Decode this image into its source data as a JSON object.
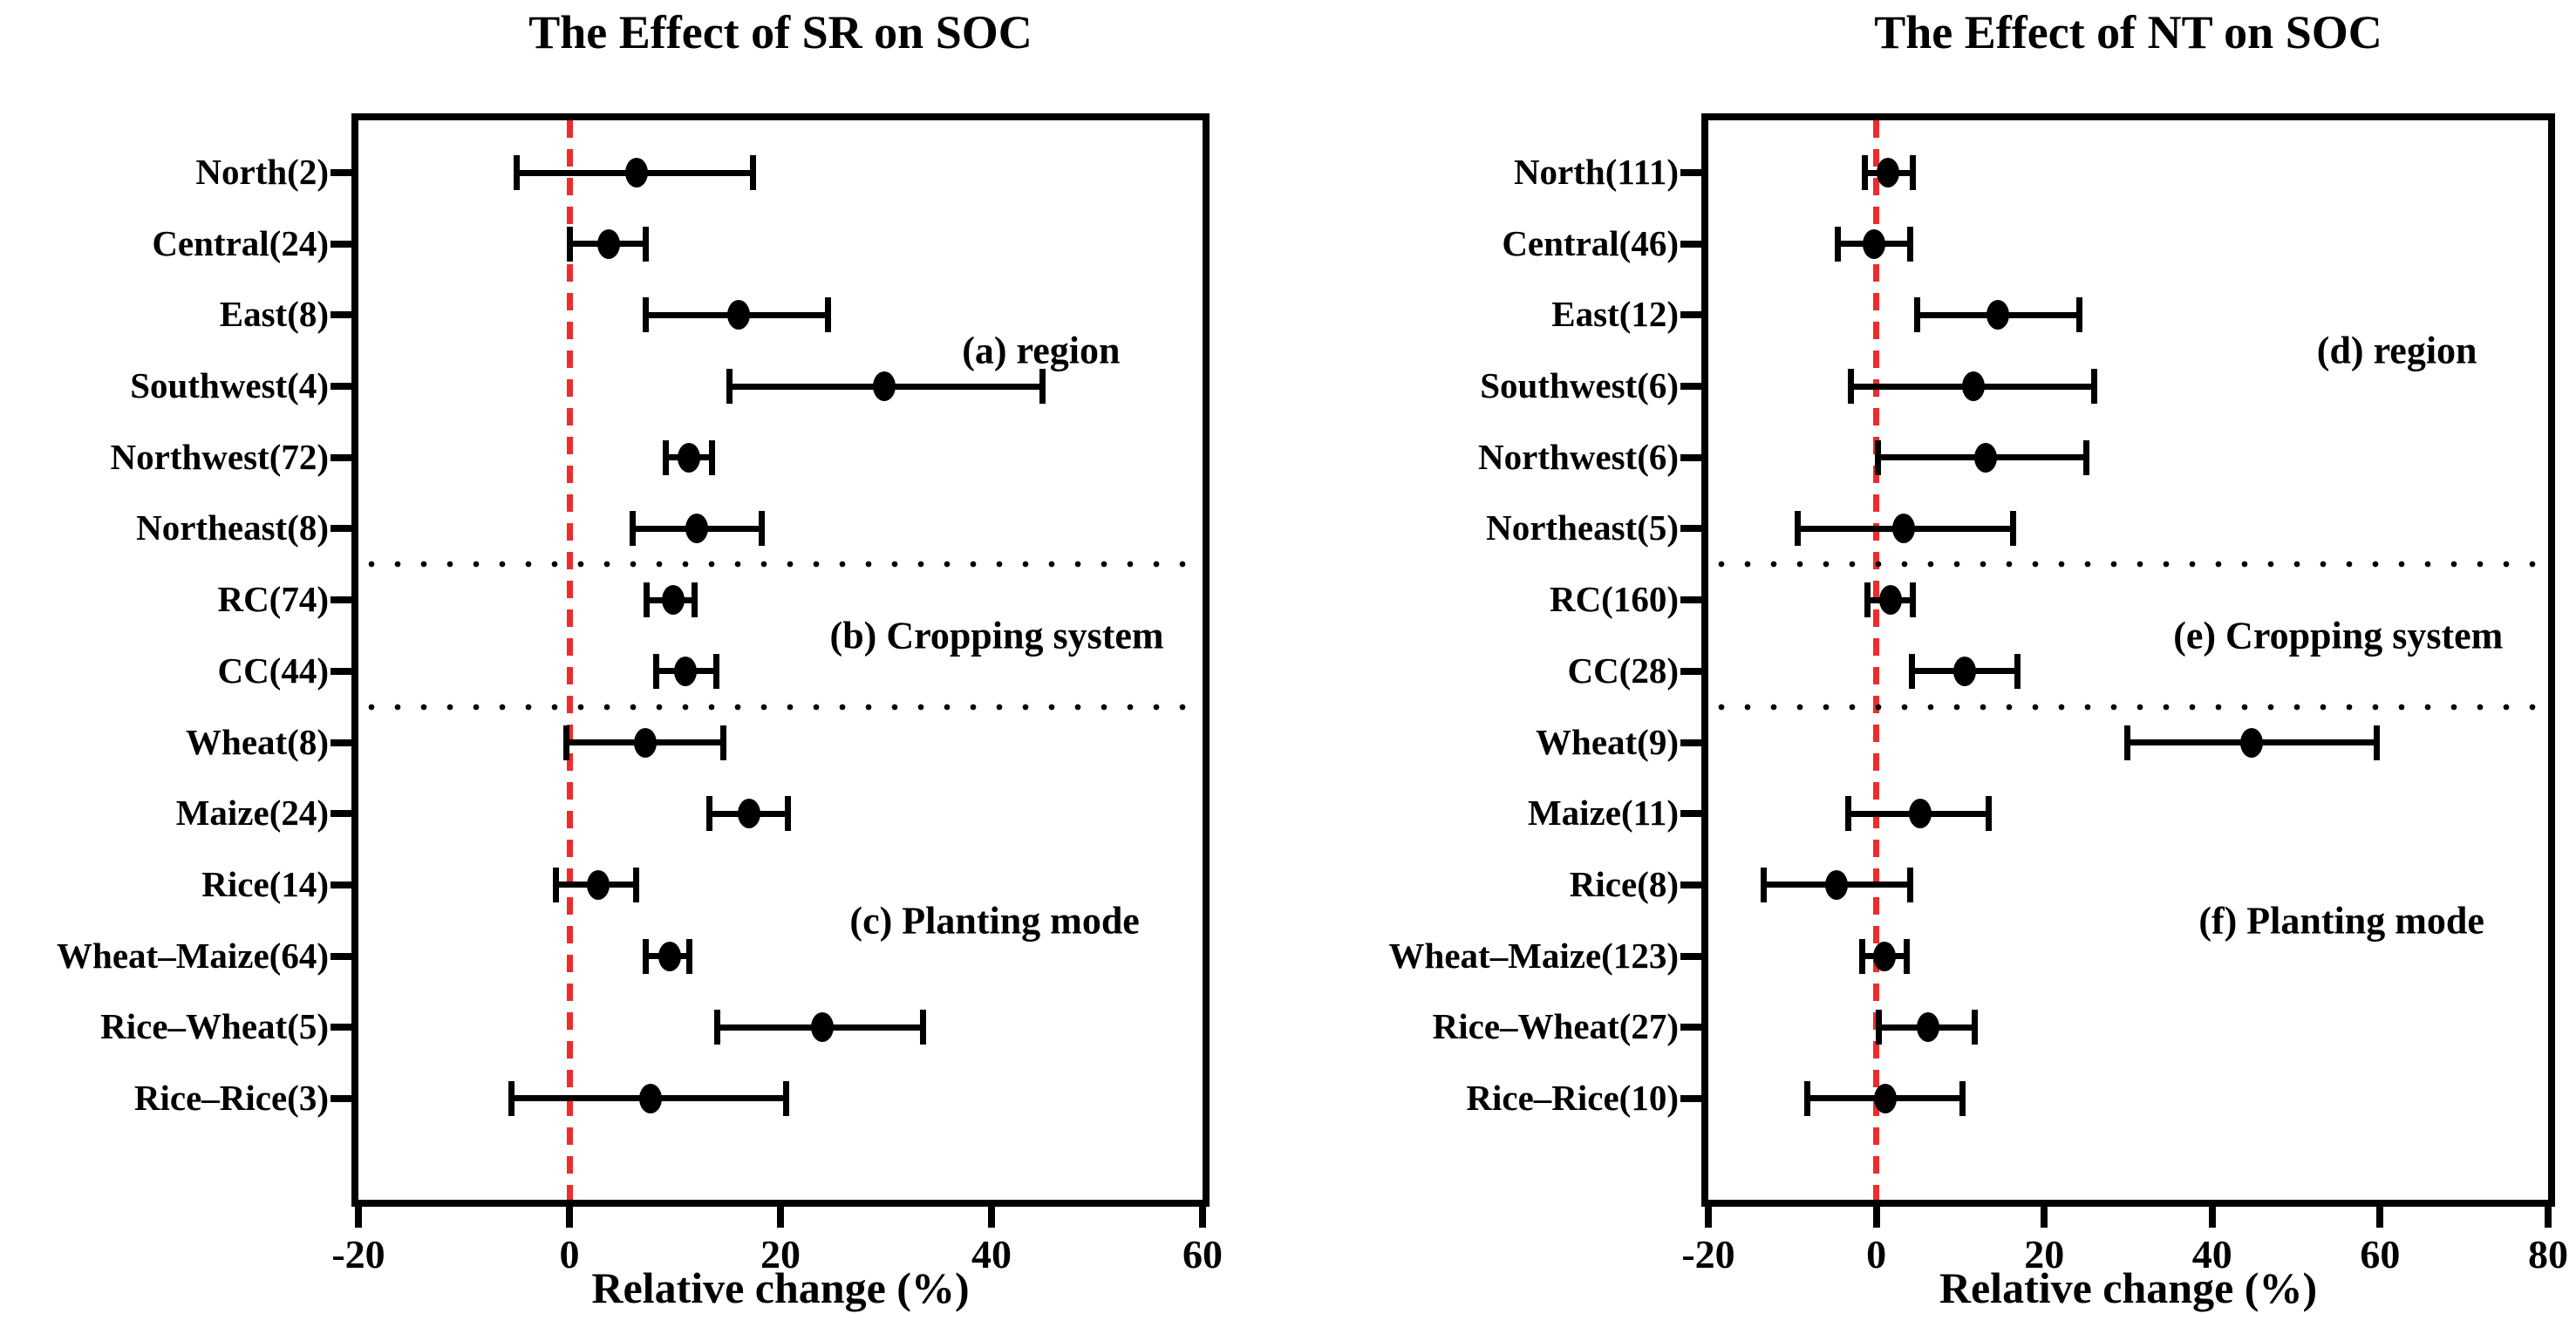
{
  "figure": {
    "background": "#ffffff",
    "text_color": "#000000",
    "zero_line_color": "#ee2c2c",
    "marker_color": "#000000"
  },
  "chart_data": [
    {
      "type": "errorbar",
      "title": "The Effect of SR on SOC",
      "xlabel": "Relative change (%)",
      "xlim": [
        -20,
        60
      ],
      "xticks": [
        -20,
        0,
        20,
        40,
        60
      ],
      "zero_line": 0,
      "grid": false,
      "legend_position": "none",
      "zero_line_color": "#ee2c2c",
      "categories": [
        "North(2)",
        "Central(24)",
        "East(8)",
        "Southwest(4)",
        "Northwest(72)",
        "Northeast(8)",
        "RC(74)",
        "CC(44)",
        "Wheat(8)",
        "Maize(24)",
        "Rice(14)",
        "Wheat–Maize(64)",
        "Rice–Wheat(5)",
        "Rice–Rice(3)"
      ],
      "series": [
        {
          "name": "mean",
          "values": [
            6.4,
            3.7,
            16.0,
            29.8,
            11.3,
            12.1,
            9.8,
            11.0,
            7.2,
            17.0,
            2.7,
            9.5,
            24.0,
            7.7
          ]
        },
        {
          "name": "ci_lower",
          "values": [
            -5.0,
            0.0,
            7.2,
            15.2,
            9.1,
            6.0,
            7.3,
            8.2,
            -0.3,
            13.3,
            -1.3,
            7.2,
            14.0,
            -5.5
          ]
        },
        {
          "name": "ci_upper",
          "values": [
            17.4,
            7.2,
            24.5,
            44.8,
            13.5,
            18.2,
            11.9,
            13.9,
            14.6,
            20.7,
            6.3,
            11.4,
            33.5,
            20.5
          ]
        }
      ],
      "separators_after_rows": [
        5,
        7
      ],
      "annotations": [
        {
          "label": "(a) region",
          "x": 44.7,
          "row_anchor": 2.5
        },
        {
          "label": "(b) Cropping system",
          "x": 40.5,
          "row_anchor": 6.5
        },
        {
          "label": "(c) Planting mode",
          "x": 40.3,
          "row_anchor": 10.5
        }
      ]
    },
    {
      "type": "errorbar",
      "title": "The Effect of NT on SOC",
      "xlabel": "Relative change (%)",
      "xlim": [
        -20,
        80
      ],
      "xticks": [
        -20,
        0,
        20,
        40,
        60,
        80
      ],
      "zero_line": 0,
      "grid": false,
      "legend_position": "none",
      "zero_line_color": "#ee2c2c",
      "categories": [
        "North(111)",
        "Central(46)",
        "East(12)",
        "Southwest(6)",
        "Northwest(6)",
        "Northeast(5)",
        "RC(160)",
        "CC(28)",
        "Wheat(9)",
        "Maize(11)",
        "Rice(8)",
        "Wheat–Maize(123)",
        "Rice–Wheat(27)",
        "Rice–Rice(10)"
      ],
      "series": [
        {
          "name": "mean",
          "values": [
            1.4,
            -0.3,
            14.5,
            11.6,
            13.0,
            3.3,
            1.7,
            10.5,
            44.7,
            5.2,
            -4.7,
            1.0,
            6.2,
            1.1
          ]
        },
        {
          "name": "ci_lower",
          "values": [
            -1.4,
            -4.6,
            4.9,
            -3.0,
            0.2,
            -9.4,
            -1.0,
            4.2,
            29.9,
            -3.3,
            -13.4,
            -1.7,
            0.3,
            -8.2
          ]
        },
        {
          "name": "ci_upper",
          "values": [
            4.3,
            4.0,
            24.2,
            25.9,
            25.0,
            16.3,
            4.4,
            16.8,
            59.6,
            13.4,
            4.0,
            3.6,
            11.7,
            10.3
          ]
        }
      ],
      "separators_after_rows": [
        5,
        7
      ],
      "annotations": [
        {
          "label": "(d) region",
          "x": 62.0,
          "row_anchor": 2.5
        },
        {
          "label": "(e) Cropping system",
          "x": 55.0,
          "row_anchor": 6.5
        },
        {
          "label": "(f) Planting mode",
          "x": 55.4,
          "row_anchor": 10.5
        }
      ]
    }
  ]
}
